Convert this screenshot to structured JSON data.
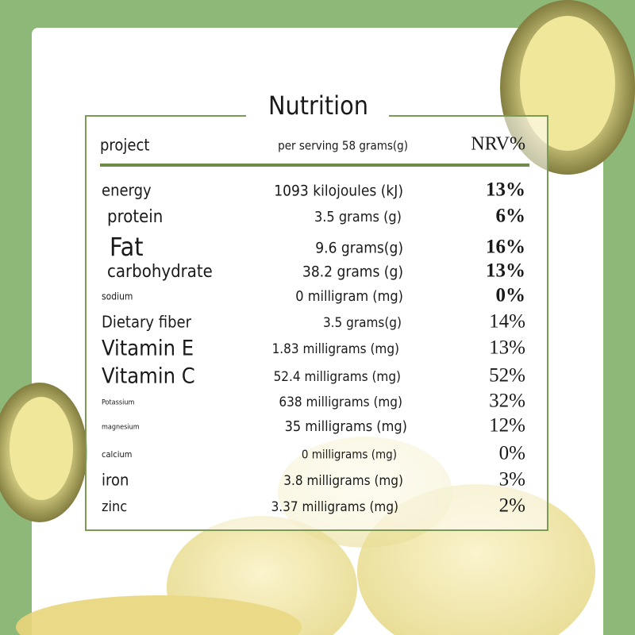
{
  "title": "Nutrition",
  "table": {
    "header": [
      "project",
      "per serving 58 grams(g)",
      "NRV%"
    ],
    "rows": [
      [
        "energy",
        "1093 kilojoules (kJ)",
        "13%"
      ],
      [
        "protein",
        "3.5 grams (g)",
        "6%"
      ],
      [
        "Fat",
        "9.6 grams(g)",
        "16%"
      ],
      [
        "carbohydrate",
        "38.2 grams (g)",
        "13%"
      ],
      [
        "sodium",
        "0 milligram (mg)",
        "0%"
      ],
      [
        "Dietary fiber",
        "3.5 grams(g)",
        "14%"
      ],
      [
        "Vitamin E",
        "1.83 milligrams (mg)",
        "13%"
      ],
      [
        "Vitamin C",
        "52.4 milligrams (mg)",
        "52%"
      ],
      [
        "Potassium",
        "638 milligrams (mg)",
        "32%"
      ],
      [
        "magnesium",
        "35 milligrams (mg)",
        "12%"
      ],
      [
        "calcium",
        "0 milligrams (mg)",
        "0%"
      ],
      [
        "iron",
        "3.8 milligrams (mg)",
        "3%"
      ],
      [
        "zinc",
        "3.37 milligrams (mg)",
        "2%"
      ]
    ]
  }
}
